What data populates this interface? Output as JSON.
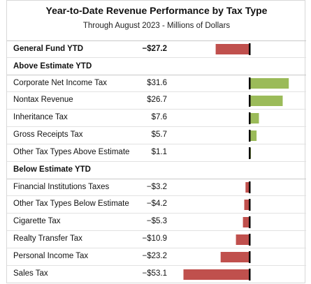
{
  "colors": {
    "positive": "#9bbb59",
    "negative": "#c0504d",
    "axis": "#000000"
  },
  "chart_data": {
    "type": "bar",
    "title": "Year-to-Date Revenue Performance by Tax Type",
    "subtitle": "Through August 2023 - Millions of Dollars",
    "rows": [
      {
        "section": null,
        "label": "General Fund YTD",
        "value": -27.2,
        "display": "−$27.2",
        "bold": true
      },
      {
        "section": "Above Estimate YTD",
        "label": "Corporate Net Income Tax",
        "value": 31.6,
        "display": "$31.6"
      },
      {
        "label": "Nontax Revenue",
        "value": 26.7,
        "display": "$26.7"
      },
      {
        "label": "Inheritance Tax",
        "value": 7.6,
        "display": "$7.6"
      },
      {
        "label": "Gross Receipts Tax",
        "value": 5.7,
        "display": "$5.7"
      },
      {
        "label": "Other Tax Types Above Estimate",
        "value": 1.1,
        "display": "$1.1"
      },
      {
        "section": "Below Estimate YTD",
        "label": "Financial Institutions Taxes",
        "value": -3.2,
        "display": "−$3.2"
      },
      {
        "label": "Other Tax Types Below Estimate",
        "value": -4.2,
        "display": "−$4.2"
      },
      {
        "label": "Cigarette Tax",
        "value": -5.3,
        "display": "−$5.3"
      },
      {
        "label": "Realty Transfer Tax",
        "value": -10.9,
        "display": "−$10.9"
      },
      {
        "label": "Personal Income Tax",
        "value": -23.2,
        "display": "−$23.2"
      },
      {
        "label": "Sales Tax",
        "value": -53.1,
        "display": "−$53.1"
      }
    ]
  }
}
